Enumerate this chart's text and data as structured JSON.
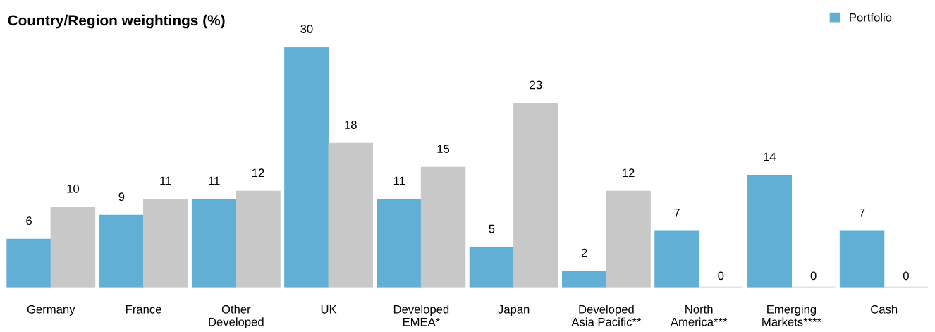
{
  "chart_data": {
    "type": "bar",
    "title": "Country/Region weightings (%)",
    "categories": [
      "Germany",
      "France",
      "Other\nDeveloped",
      "UK",
      "Developed\nEMEA*",
      "Japan",
      "Developed\nAsia Pacific**",
      "North\nAmerica***",
      "Emerging\nMarkets****",
      "Cash"
    ],
    "series": [
      {
        "name": "Portfolio",
        "color": "#62afd6",
        "values": [
          6,
          9,
          11,
          30,
          11,
          5,
          2,
          7,
          14,
          7
        ]
      },
      {
        "color": "#c8c8c8",
        "values": [
          10,
          11,
          12,
          18,
          15,
          23,
          12,
          0,
          0,
          0
        ]
      }
    ],
    "data_labels": true,
    "legend": "top right",
    "grid": false
  }
}
